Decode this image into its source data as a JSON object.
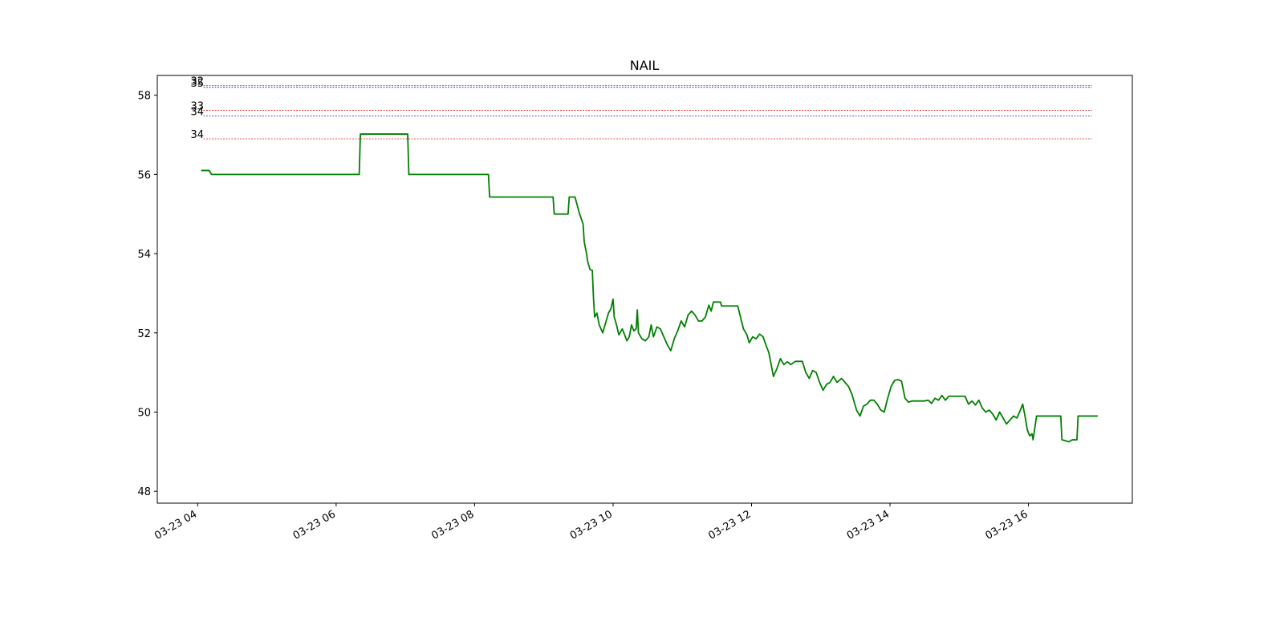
{
  "chart_data": {
    "type": "line",
    "title": "NAIL",
    "xlabel": "",
    "ylabel": "",
    "grid": false,
    "x_range": [
      "03-23 03:25",
      "03-23 17:30"
    ],
    "ylim": [
      47.7,
      58.5
    ],
    "x_ticks": [
      "03-23 04",
      "03-23 06",
      "03-23 08",
      "03-23 10",
      "03-23 12",
      "03-23 14",
      "03-23 16"
    ],
    "x_tick_times": [
      "04:00",
      "06:00",
      "08:00",
      "10:00",
      "12:00",
      "14:00",
      "16:00"
    ],
    "y_ticks": [
      48,
      50,
      52,
      54,
      56,
      58
    ],
    "reference_lines": [
      {
        "label": "32",
        "value": 58.25,
        "color": "#d62728",
        "start": "04:05",
        "end": "16:55"
      },
      {
        "label": "35",
        "value": 58.2,
        "color": "#1f1fa8",
        "start": "04:05",
        "end": "16:55"
      },
      {
        "label": "33",
        "value": 57.62,
        "color": "#d62728",
        "start": "04:05",
        "end": "16:55"
      },
      {
        "label": "34",
        "value": 57.48,
        "color": "#1f1fa8",
        "start": "04:05",
        "end": "16:55"
      },
      {
        "label": "34",
        "value": 56.9,
        "color": "#d62728",
        "start": "04:05",
        "end": "16:55"
      }
    ],
    "series": [
      {
        "color": "#008000",
        "points": [
          [
            "04:03",
            56.1
          ],
          [
            "04:10",
            56.1
          ],
          [
            "04:12",
            56.0
          ],
          [
            "06:20",
            56.0
          ],
          [
            "06:21",
            57.02
          ],
          [
            "07:02",
            57.02
          ],
          [
            "07:03",
            56.0
          ],
          [
            "08:12",
            56.0
          ],
          [
            "08:13",
            55.43
          ],
          [
            "09:08",
            55.43
          ],
          [
            "09:09",
            55.0
          ],
          [
            "09:21",
            55.0
          ],
          [
            "09:22",
            55.43
          ],
          [
            "09:27",
            55.43
          ],
          [
            "09:31",
            55.0
          ],
          [
            "09:34",
            54.75
          ],
          [
            "09:35",
            54.3
          ],
          [
            "09:37",
            54.0
          ],
          [
            "09:38",
            53.8
          ],
          [
            "09:40",
            53.6
          ],
          [
            "09:42",
            53.58
          ],
          [
            "09:43",
            52.9
          ],
          [
            "09:44",
            52.4
          ],
          [
            "09:46",
            52.5
          ],
          [
            "09:48",
            52.2
          ],
          [
            "09:51",
            52.0
          ],
          [
            "09:53",
            52.2
          ],
          [
            "09:56",
            52.5
          ],
          [
            "09:58",
            52.6
          ],
          [
            "10:00",
            52.85
          ],
          [
            "10:01",
            52.4
          ],
          [
            "10:03",
            52.2
          ],
          [
            "10:05",
            51.95
          ],
          [
            "10:08",
            52.1
          ],
          [
            "10:10",
            51.95
          ],
          [
            "10:12",
            51.8
          ],
          [
            "10:14",
            51.9
          ],
          [
            "10:16",
            52.2
          ],
          [
            "10:18",
            52.05
          ],
          [
            "10:20",
            52.1
          ],
          [
            "10:21",
            52.58
          ],
          [
            "10:22",
            52.0
          ],
          [
            "10:25",
            51.85
          ],
          [
            "10:28",
            51.8
          ],
          [
            "10:31",
            51.9
          ],
          [
            "10:33",
            52.2
          ],
          [
            "10:35",
            51.9
          ],
          [
            "10:38",
            52.15
          ],
          [
            "10:41",
            52.1
          ],
          [
            "10:44",
            51.9
          ],
          [
            "10:47",
            51.7
          ],
          [
            "10:50",
            51.55
          ],
          [
            "10:53",
            51.85
          ],
          [
            "10:56",
            52.05
          ],
          [
            "10:59",
            52.3
          ],
          [
            "11:02",
            52.15
          ],
          [
            "11:05",
            52.45
          ],
          [
            "11:08",
            52.55
          ],
          [
            "11:11",
            52.45
          ],
          [
            "11:14",
            52.3
          ],
          [
            "11:17",
            52.3
          ],
          [
            "11:20",
            52.4
          ],
          [
            "11:23",
            52.7
          ],
          [
            "11:25",
            52.55
          ],
          [
            "11:27",
            52.78
          ],
          [
            "11:33",
            52.78
          ],
          [
            "11:34",
            52.68
          ],
          [
            "11:48",
            52.68
          ],
          [
            "11:50",
            52.45
          ],
          [
            "11:53",
            52.1
          ],
          [
            "11:56",
            51.95
          ],
          [
            "11:58",
            51.75
          ],
          [
            "12:01",
            51.9
          ],
          [
            "12:04",
            51.85
          ],
          [
            "12:07",
            51.97
          ],
          [
            "12:10",
            51.9
          ],
          [
            "12:13",
            51.65
          ],
          [
            "12:15",
            51.5
          ],
          [
            "12:17",
            51.2
          ],
          [
            "12:19",
            50.9
          ],
          [
            "12:22",
            51.1
          ],
          [
            "12:25",
            51.35
          ],
          [
            "12:28",
            51.2
          ],
          [
            "12:31",
            51.27
          ],
          [
            "12:34",
            51.2
          ],
          [
            "12:38",
            51.28
          ],
          [
            "12:44",
            51.28
          ],
          [
            "12:47",
            51.0
          ],
          [
            "12:50",
            50.85
          ],
          [
            "12:53",
            51.05
          ],
          [
            "12:56",
            51.0
          ],
          [
            "12:59",
            50.75
          ],
          [
            "13:02",
            50.55
          ],
          [
            "13:05",
            50.7
          ],
          [
            "13:08",
            50.75
          ],
          [
            "13:11",
            50.9
          ],
          [
            "13:14",
            50.75
          ],
          [
            "13:18",
            50.85
          ],
          [
            "13:21",
            50.75
          ],
          [
            "13:24",
            50.65
          ],
          [
            "13:27",
            50.45
          ],
          [
            "13:29",
            50.25
          ],
          [
            "13:31",
            50.05
          ],
          [
            "13:34",
            49.9
          ],
          [
            "13:37",
            50.15
          ],
          [
            "13:40",
            50.2
          ],
          [
            "13:43",
            50.3
          ],
          [
            "13:46",
            50.3
          ],
          [
            "13:49",
            50.2
          ],
          [
            "13:52",
            50.05
          ],
          [
            "13:55",
            50.0
          ],
          [
            "13:58",
            50.35
          ],
          [
            "14:01",
            50.65
          ],
          [
            "14:04",
            50.8
          ],
          [
            "14:07",
            50.82
          ],
          [
            "14:10",
            50.78
          ],
          [
            "14:13",
            50.35
          ],
          [
            "14:16",
            50.25
          ],
          [
            "14:19",
            50.28
          ],
          [
            "14:30",
            50.28
          ],
          [
            "14:33",
            50.3
          ],
          [
            "14:36",
            50.22
          ],
          [
            "14:39",
            50.35
          ],
          [
            "14:42",
            50.3
          ],
          [
            "14:45",
            50.42
          ],
          [
            "14:48",
            50.3
          ],
          [
            "14:51",
            50.4
          ],
          [
            "15:05",
            50.4
          ],
          [
            "15:08",
            50.2
          ],
          [
            "15:11",
            50.28
          ],
          [
            "15:14",
            50.18
          ],
          [
            "15:17",
            50.3
          ],
          [
            "15:20",
            50.1
          ],
          [
            "15:23",
            50.0
          ],
          [
            "15:26",
            50.05
          ],
          [
            "15:29",
            49.95
          ],
          [
            "15:32",
            49.8
          ],
          [
            "15:35",
            50.0
          ],
          [
            "15:38",
            49.85
          ],
          [
            "15:41",
            49.7
          ],
          [
            "15:44",
            49.8
          ],
          [
            "15:47",
            49.9
          ],
          [
            "15:50",
            49.85
          ],
          [
            "15:53",
            50.05
          ],
          [
            "15:55",
            50.2
          ],
          [
            "15:57",
            49.9
          ],
          [
            "15:59",
            49.55
          ],
          [
            "16:01",
            49.4
          ],
          [
            "16:03",
            49.45
          ],
          [
            "16:04",
            49.3
          ],
          [
            "16:07",
            49.9
          ],
          [
            "16:28",
            49.9
          ],
          [
            "16:29",
            49.3
          ],
          [
            "16:35",
            49.25
          ],
          [
            "16:38",
            49.3
          ],
          [
            "16:42",
            49.3
          ],
          [
            "16:43",
            49.9
          ],
          [
            "17:00",
            49.9
          ]
        ]
      }
    ]
  }
}
